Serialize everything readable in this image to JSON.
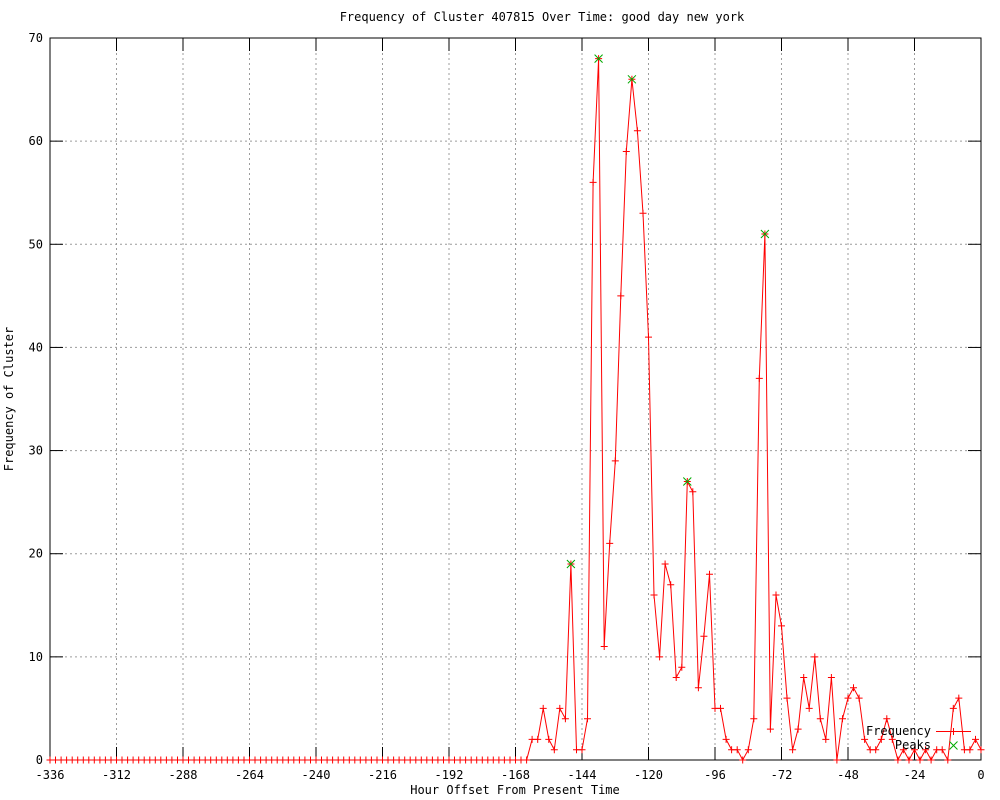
{
  "chart_data": {
    "type": "line",
    "title": "Frequency of Cluster 407815 Over Time: good day new york",
    "xlabel": "Hour Offset From Present Time",
    "ylabel": "Frequency of Cluster",
    "xlim": [
      -336,
      0
    ],
    "ylim": [
      0,
      70
    ],
    "xticks": [
      -336,
      -312,
      -288,
      -264,
      -240,
      -216,
      -192,
      -168,
      -144,
      -120,
      -96,
      -72,
      -48,
      -24,
      0
    ],
    "yticks": [
      0,
      10,
      20,
      30,
      40,
      50,
      60,
      70
    ],
    "grid": true,
    "grid_color": "#9c9c9c",
    "background_color": "#ffffff",
    "border_color": "#000000",
    "legend_position": "inside-bottom-right",
    "series": [
      {
        "name": "Frequency",
        "color": "#ff0000",
        "marker": "plus",
        "x_start": -336,
        "x_step": 2,
        "values": [
          0,
          0,
          0,
          0,
          0,
          0,
          0,
          0,
          0,
          0,
          0,
          0,
          0,
          0,
          0,
          0,
          0,
          0,
          0,
          0,
          0,
          0,
          0,
          0,
          0,
          0,
          0,
          0,
          0,
          0,
          0,
          0,
          0,
          0,
          0,
          0,
          0,
          0,
          0,
          0,
          0,
          0,
          0,
          0,
          0,
          0,
          0,
          0,
          0,
          0,
          0,
          0,
          0,
          0,
          0,
          0,
          0,
          0,
          0,
          0,
          0,
          0,
          0,
          0,
          0,
          0,
          0,
          0,
          0,
          0,
          0,
          0,
          0,
          0,
          0,
          0,
          0,
          0,
          0,
          0,
          0,
          0,
          0,
          0,
          0,
          0,
          0,
          2,
          2,
          5,
          2,
          1,
          5,
          4,
          19,
          1,
          1,
          4,
          56,
          68,
          11,
          21,
          29,
          45,
          59,
          66,
          61,
          53,
          41,
          16,
          10,
          19,
          17,
          8,
          9,
          27,
          26,
          7,
          12,
          18,
          5,
          5,
          2,
          1,
          1,
          0,
          1,
          4,
          37,
          51,
          3,
          16,
          13,
          6,
          1,
          3,
          8,
          5,
          10,
          4,
          2,
          8,
          0,
          4,
          6,
          7,
          6,
          2,
          1,
          1,
          2,
          4,
          2,
          0,
          1,
          0,
          1,
          0,
          1,
          0,
          1,
          1,
          0,
          5,
          6,
          1,
          1,
          2,
          1
        ]
      },
      {
        "name": "Peaks",
        "color": "#00aa00",
        "marker": "x",
        "points": [
          [
            -148,
            19
          ],
          [
            -138,
            68
          ],
          [
            -126,
            66
          ],
          [
            -106,
            27
          ],
          [
            -78,
            51
          ]
        ]
      }
    ]
  }
}
